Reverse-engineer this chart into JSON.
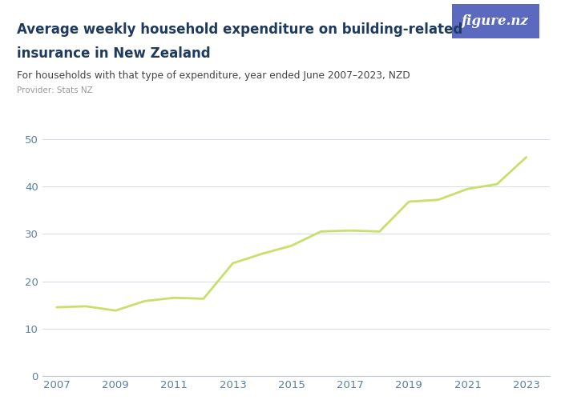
{
  "title_line1": "Average weekly household expenditure on building-related",
  "title_line2": "insurance in New Zealand",
  "subtitle": "For households with that type of expenditure, year ended June 2007–2023, NZD",
  "provider": "Provider: Stats NZ",
  "years": [
    2007,
    2008,
    2009,
    2010,
    2011,
    2012,
    2013,
    2014,
    2015,
    2016,
    2017,
    2018,
    2019,
    2020,
    2021,
    2022,
    2023
  ],
  "values": [
    14.5,
    14.7,
    13.8,
    15.8,
    16.5,
    16.3,
    23.8,
    25.8,
    27.5,
    30.5,
    30.7,
    30.5,
    36.8,
    37.2,
    39.5,
    40.5,
    46.2
  ],
  "line_color": "#c8e06a",
  "line_width": 2.0,
  "bg_color": "#ffffff",
  "title_color": "#1e3a5f",
  "subtitle_color": "#444444",
  "provider_color": "#999999",
  "tick_label_color": "#5b7fa6",
  "grid_color": "#d8dce6",
  "bottom_spine_color": "#c0c8d8",
  "ylim": [
    0,
    55
  ],
  "yticks": [
    0,
    10,
    20,
    30,
    40,
    50
  ],
  "xlim": [
    2006.5,
    2023.8
  ],
  "xticks": [
    2007,
    2009,
    2011,
    2013,
    2015,
    2017,
    2019,
    2021,
    2023
  ],
  "logo_bg_color": "#5b6abf",
  "logo_text": "figure.nz"
}
